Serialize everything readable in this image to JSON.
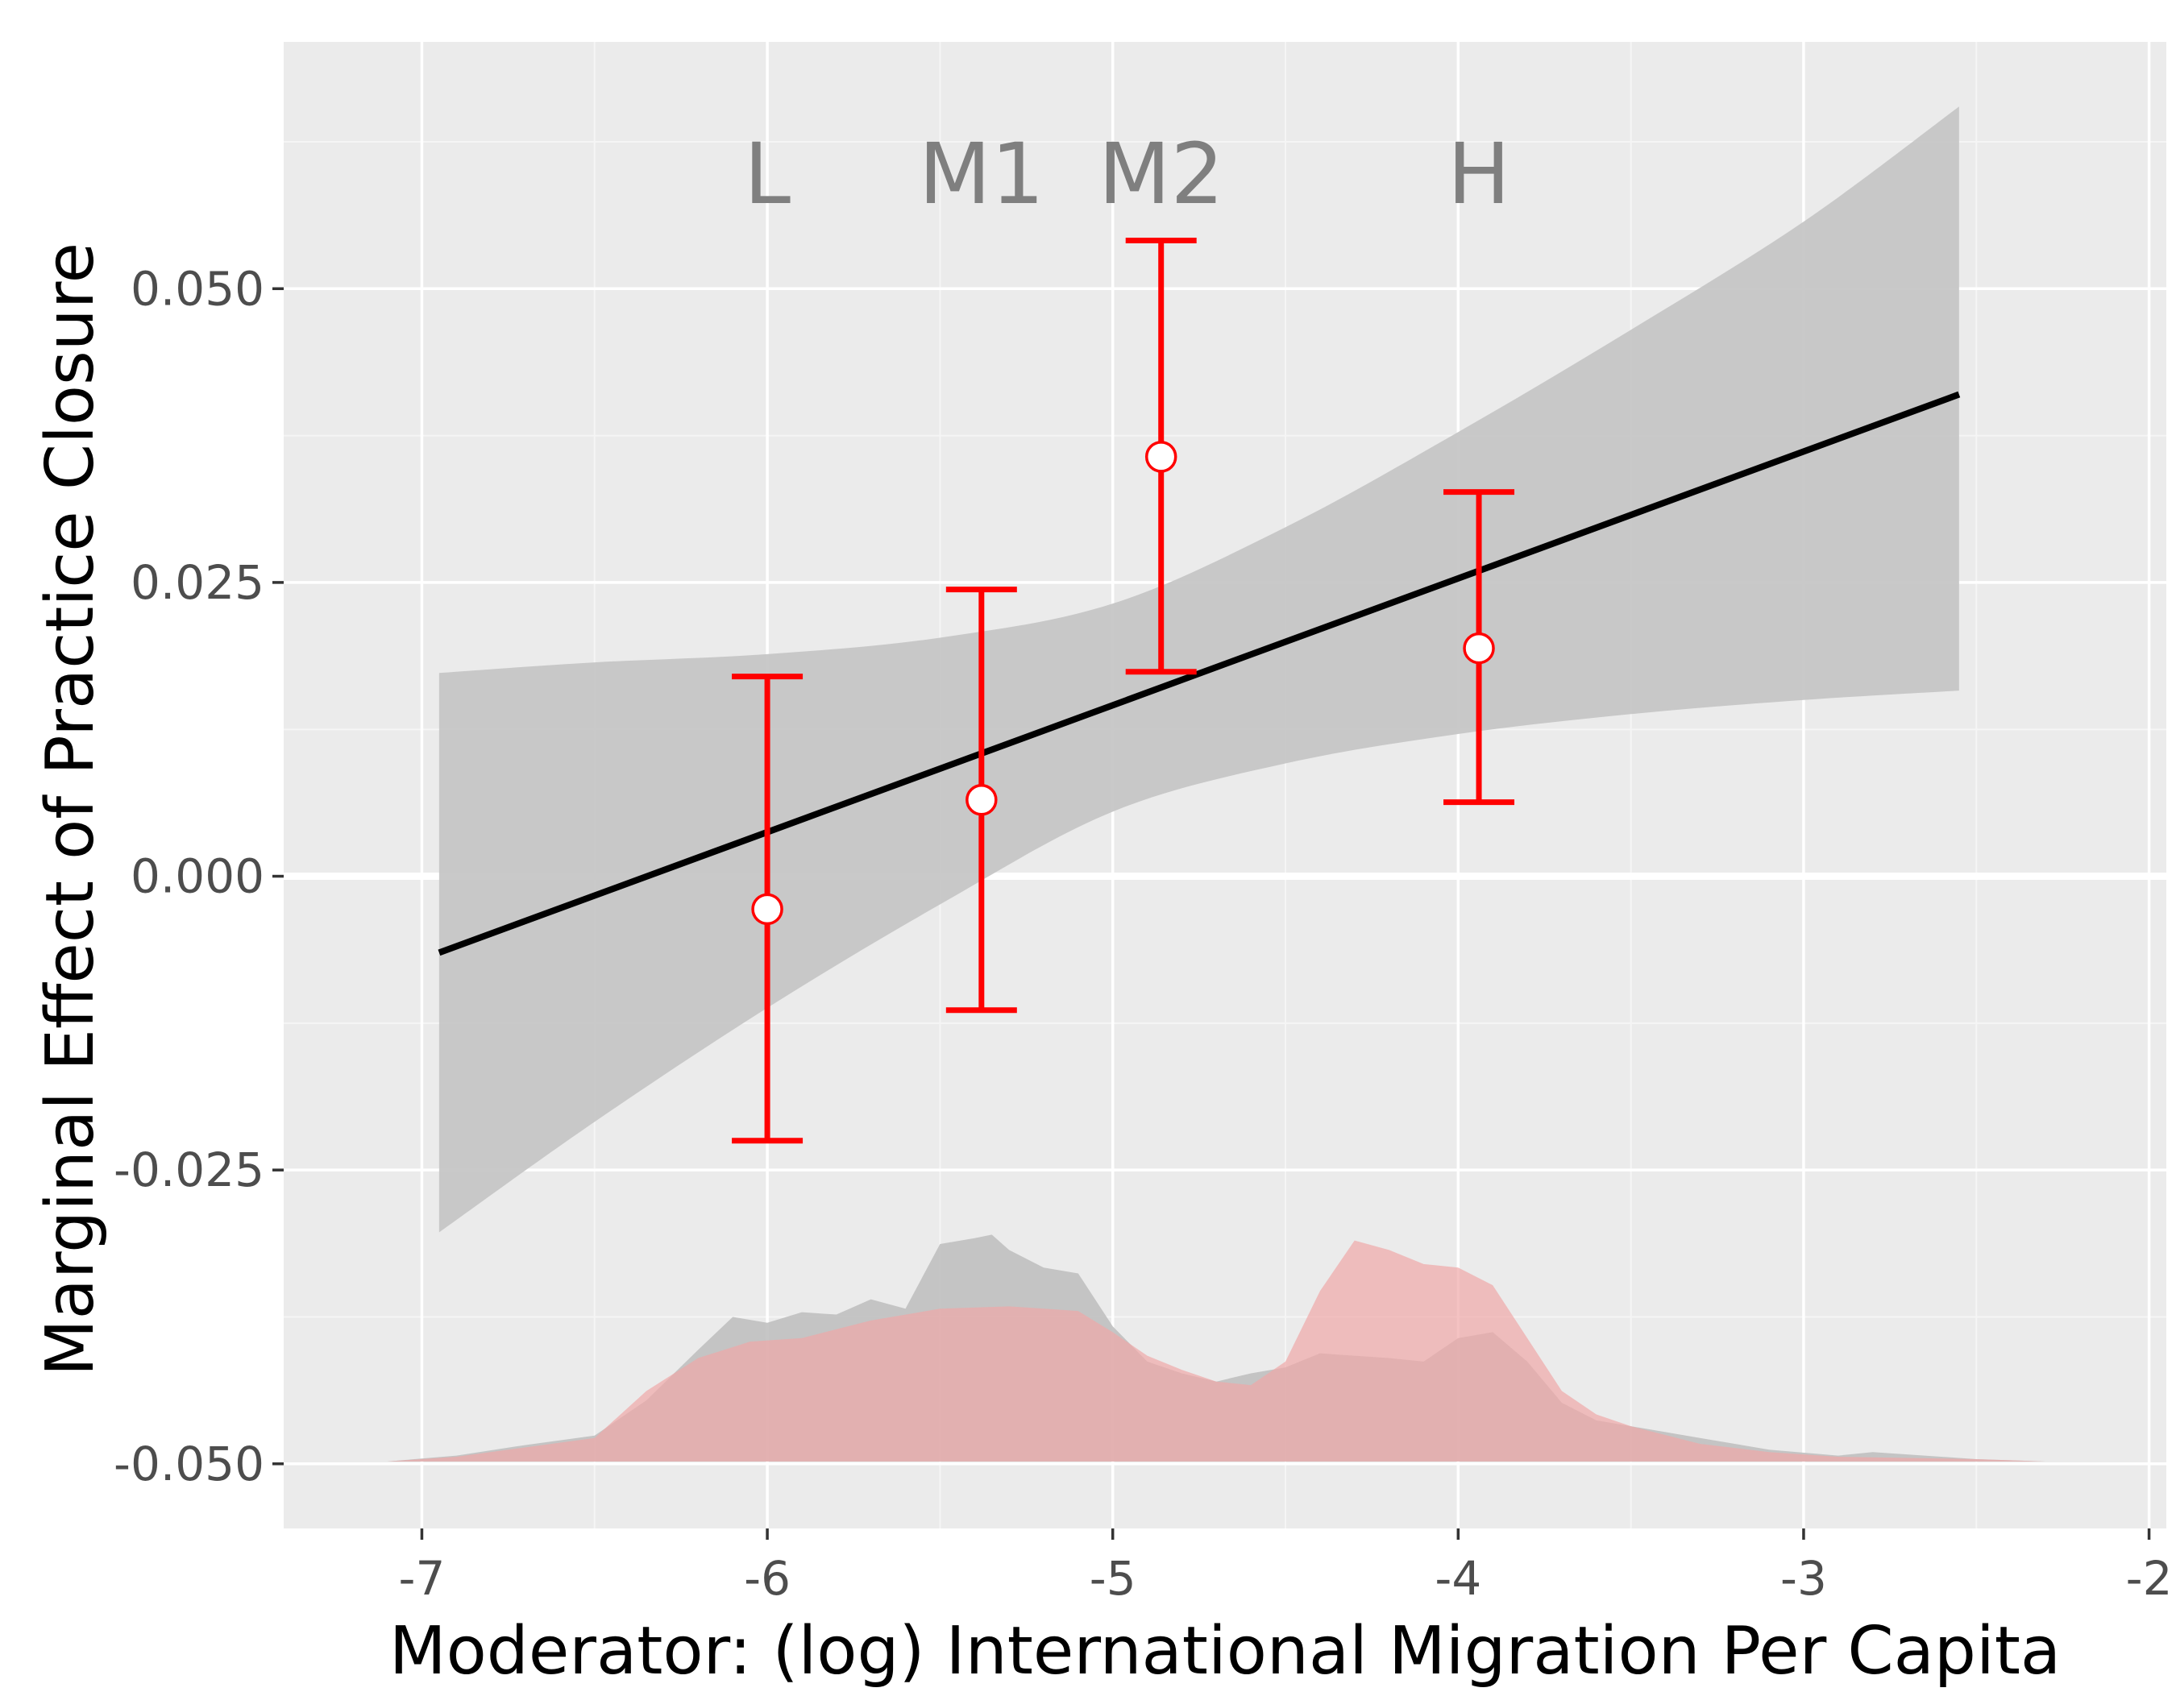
{
  "chart_data": {
    "type": "line",
    "title": "",
    "xlabel": "Moderator: (log) International Migration Per Capita",
    "ylabel": "Marginal Effect of Practice Closure",
    "xlim": [
      -7.4,
      -1.95
    ],
    "ylim": [
      -0.0555,
      0.071
    ],
    "x_ticks": [
      -7,
      -6,
      -5,
      -4,
      -3,
      -2
    ],
    "x_tick_labels": [
      "-7",
      "-6",
      "-5",
      "-4",
      "-3",
      "-2"
    ],
    "y_ticks": [
      -0.05,
      -0.025,
      0.0,
      0.025,
      0.05
    ],
    "y_tick_labels": [
      "-0.050",
      "-0.025",
      "0.000",
      "0.025",
      "0.050"
    ],
    "grid": true,
    "reference_line_y": 0,
    "line": {
      "x": [
        -6.95,
        -2.55
      ],
      "y": [
        -0.0065,
        0.041
      ],
      "color": "#000000"
    },
    "confidence_band": {
      "color": "#c6c6c6",
      "x": [
        -6.95,
        -6.5,
        -6.0,
        -5.5,
        -5.0,
        -4.5,
        -4.0,
        -3.5,
        -3.0,
        -2.55
      ],
      "upper": [
        0.0173,
        0.0182,
        0.0189,
        0.0203,
        0.0232,
        0.0297,
        0.0378,
        0.0465,
        0.0557,
        0.0655
      ],
      "lower": [
        -0.0303,
        -0.0209,
        -0.0112,
        -0.0024,
        0.0055,
        0.0096,
        0.0121,
        0.0138,
        0.015,
        0.0158
      ]
    },
    "bin_estimates": {
      "color": "#ff0000",
      "labels": [
        "L",
        "M1",
        "M2",
        "H"
      ],
      "x": [
        -6.0,
        -5.38,
        -4.86,
        -3.94
      ],
      "estimate": [
        -0.0028,
        0.0065,
        0.0357,
        0.0194
      ],
      "lower": [
        -0.0225,
        -0.0114,
        0.0174,
        0.0063
      ],
      "upper": [
        0.017,
        0.0244,
        0.0541,
        0.0327
      ]
    },
    "densities": [
      {
        "color": "#c0c0c0",
        "x": [
          -7.1,
          -6.9,
          -6.7,
          -6.5,
          -6.35,
          -6.2,
          -6.1,
          -6.0,
          -5.9,
          -5.8,
          -5.7,
          -5.6,
          -5.5,
          -5.4,
          -5.35,
          -5.3,
          -5.2,
          -5.1,
          -5.0,
          -4.9,
          -4.8,
          -4.7,
          -4.6,
          -4.5,
          -4.4,
          -4.3,
          -4.2,
          -4.1,
          -4.0,
          -3.9,
          -3.8,
          -3.7,
          -3.6,
          -3.5,
          -3.3,
          -3.1,
          -2.9,
          -2.8,
          -2.5,
          -2.3
        ],
        "y": [
          0.0,
          0.0005,
          0.0014,
          0.0022,
          0.0052,
          0.0095,
          0.0123,
          0.0118,
          0.0127,
          0.0125,
          0.0138,
          0.013,
          0.0185,
          0.019,
          0.0193,
          0.018,
          0.0165,
          0.016,
          0.0115,
          0.0085,
          0.0075,
          0.0068,
          0.0075,
          0.008,
          0.0092,
          0.009,
          0.0088,
          0.0085,
          0.0105,
          0.011,
          0.0085,
          0.005,
          0.0035,
          0.003,
          0.002,
          0.001,
          0.0005,
          0.0008,
          0.0002,
          0.0
        ]
      },
      {
        "color": "#f0a8a8",
        "x": [
          -7.1,
          -6.9,
          -6.7,
          -6.5,
          -6.35,
          -6.2,
          -6.05,
          -5.9,
          -5.7,
          -5.5,
          -5.3,
          -5.1,
          -5.0,
          -4.9,
          -4.8,
          -4.7,
          -4.6,
          -4.5,
          -4.4,
          -4.3,
          -4.2,
          -4.1,
          -4.0,
          -3.9,
          -3.8,
          -3.7,
          -3.6,
          -3.5,
          -3.3,
          -3.1,
          -2.9,
          -2.7,
          -2.5,
          -2.3
        ],
        "y": [
          0.0,
          0.0004,
          0.0012,
          0.002,
          0.006,
          0.0088,
          0.0102,
          0.0105,
          0.012,
          0.013,
          0.0132,
          0.0128,
          0.011,
          0.009,
          0.0078,
          0.0068,
          0.0065,
          0.0085,
          0.0145,
          0.0188,
          0.018,
          0.0168,
          0.0165,
          0.015,
          0.0105,
          0.006,
          0.004,
          0.003,
          0.0015,
          0.0008,
          0.0004,
          0.0003,
          0.0002,
          0.0
        ]
      }
    ],
    "density_baseline_y": -0.0498,
    "density_scale": 1.0
  }
}
